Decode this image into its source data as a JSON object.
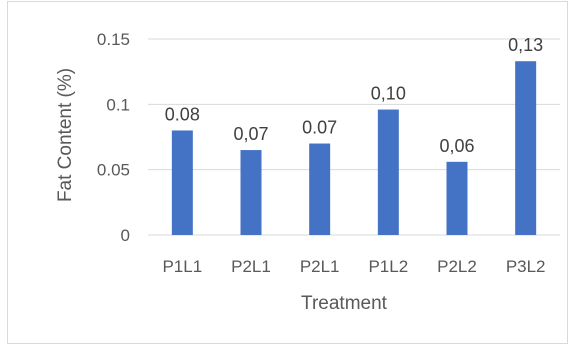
{
  "chart_data": {
    "type": "bar",
    "categories": [
      "P1L1",
      "P2L1",
      "P2L1",
      "P1L2",
      "P2L2",
      "P3L2"
    ],
    "values": [
      0.08,
      0.065,
      0.07,
      0.096,
      0.056,
      0.133
    ],
    "data_labels": [
      "0.08",
      "0,07",
      "0.07",
      "0,10",
      "0,06",
      "0,13"
    ],
    "title": "",
    "xlabel": "Treatment",
    "ylabel": "Fat  Content (%)",
    "ylim": [
      0,
      0.15
    ],
    "yticks": [
      0,
      0.05,
      0.1,
      0.15
    ],
    "ytick_labels": [
      "0",
      "0.05",
      "0.1",
      "0.15"
    ],
    "grid": true,
    "legend": "none",
    "bar_color": "#4472c4",
    "gridline_color": "#d9d9d9"
  }
}
